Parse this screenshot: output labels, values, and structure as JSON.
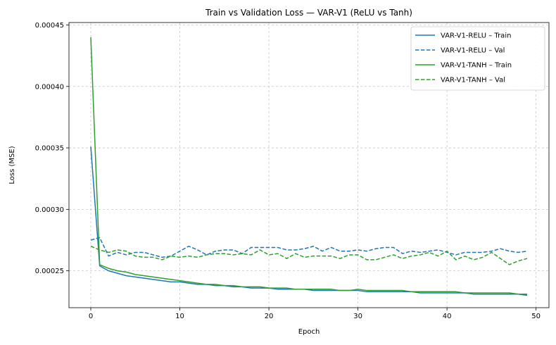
{
  "chart_data": {
    "type": "line",
    "title": "Train vs Validation Loss — VAR-V1 (ReLU vs Tanh)",
    "xlabel": "Epoch",
    "ylabel": "Loss (MSE)",
    "xlim": [
      -2.45,
      51.45
    ],
    "ylim": [
      0.00022,
      0.000452
    ],
    "xticks": [
      0,
      10,
      20,
      30,
      40,
      50
    ],
    "yticks": [
      0.00025,
      0.0003,
      0.00035,
      0.0004,
      0.00045
    ],
    "ytick_labels": [
      "0.00025",
      "0.00030",
      "0.00035",
      "0.00040",
      "0.00045"
    ],
    "grid": true,
    "legend_position": "top-right",
    "x": [
      0,
      1,
      2,
      3,
      4,
      5,
      6,
      7,
      8,
      9,
      10,
      11,
      12,
      13,
      14,
      15,
      16,
      17,
      18,
      19,
      20,
      21,
      22,
      23,
      24,
      25,
      26,
      27,
      28,
      29,
      30,
      31,
      32,
      33,
      34,
      35,
      36,
      37,
      38,
      39,
      40,
      41,
      42,
      43,
      44,
      45,
      46,
      47,
      48,
      49
    ],
    "series": [
      {
        "name": "VAR-V1-RELU – Train",
        "color": "#1f77b4",
        "style": "solid",
        "values": [
          0.000351,
          0.000254,
          0.00025,
          0.000248,
          0.000246,
          0.000245,
          0.000244,
          0.000243,
          0.000242,
          0.000241,
          0.000241,
          0.00024,
          0.000239,
          0.000239,
          0.000238,
          0.000238,
          0.000237,
          0.000237,
          0.000236,
          0.000236,
          0.000236,
          0.000235,
          0.000235,
          0.000235,
          0.000235,
          0.000234,
          0.000234,
          0.000234,
          0.000234,
          0.000234,
          0.000234,
          0.000233,
          0.000233,
          0.000233,
          0.000233,
          0.000233,
          0.000233,
          0.000232,
          0.000232,
          0.000232,
          0.000232,
          0.000232,
          0.000232,
          0.000231,
          0.000231,
          0.000231,
          0.000231,
          0.000231,
          0.000231,
          0.00023
        ]
      },
      {
        "name": "VAR-V1-RELU – Val",
        "color": "#1f77b4",
        "style": "dashed",
        "values": [
          0.000275,
          0.000277,
          0.000262,
          0.000265,
          0.000263,
          0.000265,
          0.000265,
          0.000263,
          0.000261,
          0.000262,
          0.000266,
          0.00027,
          0.000267,
          0.000263,
          0.000266,
          0.000267,
          0.000267,
          0.000264,
          0.000269,
          0.000269,
          0.000269,
          0.000269,
          0.000267,
          0.000267,
          0.000268,
          0.00027,
          0.000266,
          0.000269,
          0.000266,
          0.000266,
          0.000267,
          0.000266,
          0.000268,
          0.000269,
          0.000269,
          0.000264,
          0.000266,
          0.000265,
          0.000266,
          0.000267,
          0.000265,
          0.000263,
          0.000265,
          0.000265,
          0.000265,
          0.000266,
          0.000268,
          0.000266,
          0.000265,
          0.000266
        ]
      },
      {
        "name": "VAR-V1-TANH – Train",
        "color": "#2ca02c",
        "style": "solid",
        "values": [
          0.00044,
          0.000255,
          0.000252,
          0.00025,
          0.000249,
          0.000247,
          0.000246,
          0.000245,
          0.000244,
          0.000243,
          0.000242,
          0.000241,
          0.00024,
          0.000239,
          0.000239,
          0.000238,
          0.000238,
          0.000237,
          0.000237,
          0.000237,
          0.000236,
          0.000236,
          0.000236,
          0.000235,
          0.000235,
          0.000235,
          0.000235,
          0.000235,
          0.000234,
          0.000234,
          0.000235,
          0.000234,
          0.000234,
          0.000234,
          0.000234,
          0.000234,
          0.000233,
          0.000233,
          0.000233,
          0.000233,
          0.000233,
          0.000233,
          0.000232,
          0.000232,
          0.000232,
          0.000232,
          0.000232,
          0.000232,
          0.000231,
          0.000231
        ]
      },
      {
        "name": "VAR-V1-TANH – Val",
        "color": "#2ca02c",
        "style": "dashed",
        "values": [
          0.00027,
          0.000267,
          0.000265,
          0.000267,
          0.000266,
          0.000262,
          0.000261,
          0.000261,
          0.000259,
          0.000262,
          0.000261,
          0.000262,
          0.000261,
          0.000263,
          0.000264,
          0.000264,
          0.000263,
          0.000264,
          0.000263,
          0.000267,
          0.000263,
          0.000264,
          0.00026,
          0.000264,
          0.000261,
          0.000262,
          0.000262,
          0.000262,
          0.00026,
          0.000263,
          0.000263,
          0.000259,
          0.000259,
          0.000261,
          0.000263,
          0.00026,
          0.000262,
          0.000263,
          0.000265,
          0.000262,
          0.000266,
          0.000259,
          0.000262,
          0.000259,
          0.000261,
          0.000265,
          0.00026,
          0.000255,
          0.000258,
          0.00026
        ]
      }
    ]
  }
}
